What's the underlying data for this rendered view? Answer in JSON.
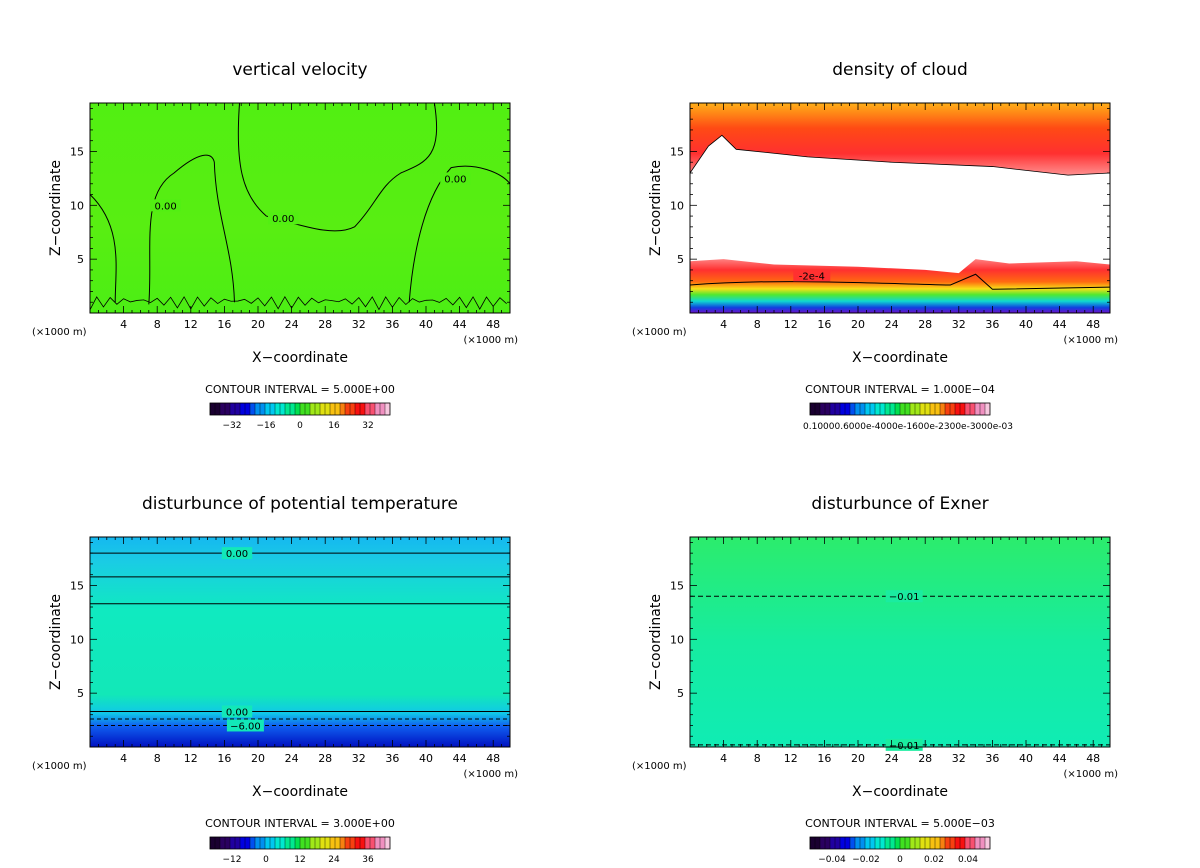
{
  "chart_data": [
    {
      "type": "heatmap",
      "title": "vertical velocity",
      "xlabel": "X−coordinate",
      "ylabel": "Z−coordinate",
      "x_unit": "(×1000 m)",
      "xlim": [
        0,
        50
      ],
      "ylim": [
        0,
        19.5
      ],
      "x_ticks": [
        "4",
        "8",
        "12",
        "16",
        "20",
        "24",
        "28",
        "32",
        "36",
        "40",
        "44",
        "48"
      ],
      "y_ticks": [
        "5",
        "10",
        "15"
      ],
      "contour_interval": "CONTOUR INTERVAL = 5.000E+00",
      "colorbar_labels": [
        "−32",
        "−16",
        "0",
        "16",
        "32"
      ],
      "contour_labels": [
        {
          "text": "0.00",
          "x": 9,
          "z": 10
        },
        {
          "text": "0.00",
          "x": 23,
          "z": 8.8
        },
        {
          "text": "0.00",
          "x": 43.5,
          "z": 12.5
        }
      ],
      "field": "near-zero everywhere (uniform green), small-scale contours near surface"
    },
    {
      "type": "heatmap",
      "title": "density of cloud",
      "xlabel": "X−coordinate",
      "ylabel": "Z−coordinate",
      "x_unit": "(×1000 m)",
      "xlim": [
        0,
        50
      ],
      "ylim": [
        0,
        19.5
      ],
      "x_ticks": [
        "4",
        "8",
        "12",
        "16",
        "20",
        "24",
        "28",
        "32",
        "36",
        "40",
        "44",
        "48"
      ],
      "y_ticks": [
        "5",
        "10",
        "15"
      ],
      "contour_interval": "CONTOUR INTERVAL = 1.000E−04",
      "colorbar_labels": [
        "0.10000",
        "0.6000e-4",
        "0.1600e-3",
        "0.2300e-3",
        "0.3000e-3"
      ],
      "colorbar_label_string": "0.10000.6000e-4000e-1600e-2300e-3000e-03",
      "contour_labels": [
        {
          "text": "-2e-4",
          "x": 14.5,
          "z": 3.5
        }
      ],
      "field": "high values (red/orange) near top 15-19.5 km and 2-5 km; white cloud-free band 5-14 km; blue/purple near surface"
    },
    {
      "type": "heatmap",
      "title": "disturbunce of potential temperature",
      "xlabel": "X−coordinate",
      "ylabel": "Z−coordinate",
      "x_unit": "(×1000 m)",
      "xlim": [
        0,
        50
      ],
      "ylim": [
        0,
        19.5
      ],
      "x_ticks": [
        "4",
        "8",
        "12",
        "16",
        "20",
        "24",
        "28",
        "32",
        "36",
        "40",
        "44",
        "48"
      ],
      "y_ticks": [
        "5",
        "10",
        "15"
      ],
      "contour_interval": "CONTOUR INTERVAL = 3.000E+00",
      "colorbar_labels": [
        "−12",
        "0",
        "12",
        "24",
        "36"
      ],
      "contour_labels": [
        {
          "text": "0.00",
          "x": 17.5,
          "z": 18
        },
        {
          "text": "0.00",
          "x": 17.5,
          "z": 3.3
        },
        {
          "text": "−6.00",
          "x": 18.5,
          "z": 2
        }
      ],
      "field": "horizontally layered; cyan aloft, green-cyan mid levels, deep blue near surface"
    },
    {
      "type": "heatmap",
      "title": "disturbunce of Exner",
      "xlabel": "X−coordinate",
      "ylabel": "Z−coordinate",
      "x_unit": "(×1000 m)",
      "xlim": [
        0,
        50
      ],
      "ylim": [
        0,
        19.5
      ],
      "x_ticks": [
        "4",
        "8",
        "12",
        "16",
        "20",
        "24",
        "28",
        "32",
        "36",
        "40",
        "44",
        "48"
      ],
      "y_ticks": [
        "5",
        "10",
        "15"
      ],
      "contour_interval": "CONTOUR INTERVAL = 5.000E−03",
      "colorbar_labels": [
        "−0.04",
        "−0.02",
        "0",
        "0.02",
        "0.04"
      ],
      "contour_labels": [
        {
          "text": "−0.01",
          "x": 25.5,
          "z": 14
        },
        {
          "text": "−0.01",
          "x": 25.5,
          "z": 0.2
        }
      ],
      "field": "uniform green-teal, slightly greener aloft"
    }
  ]
}
